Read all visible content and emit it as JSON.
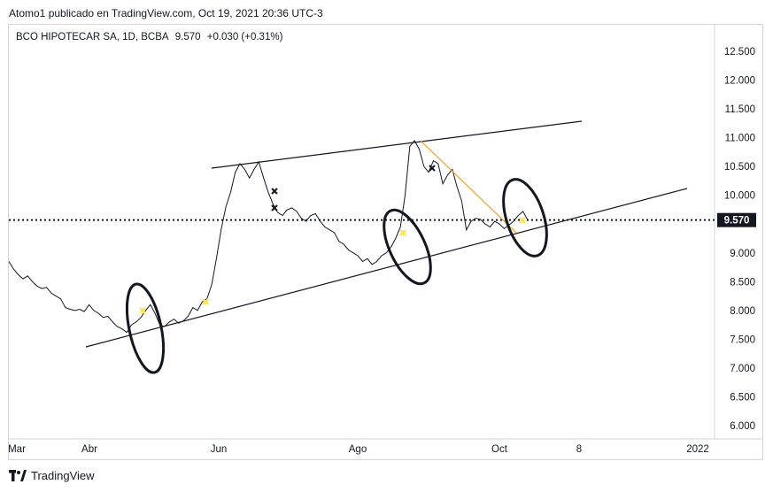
{
  "header": {
    "publisher": "Atomo1 publicado en TradingView.com, Oct 19, 2021 20:36 UTC-3"
  },
  "legend": {
    "symbol": "BCO HIPOTECAR SA, 1D, BCBA",
    "last": "9.570",
    "change": "+0.030 (+0.31%)"
  },
  "footer": {
    "brand": "TradingView"
  },
  "colors": {
    "price_line": "#131722",
    "trendline": "#131722",
    "orange_trendline": "#f7a21b",
    "marker_yellow": "#ffe44d",
    "price_label_bg": "#131722",
    "price_label_text": "#ffffff"
  },
  "chart_data": {
    "type": "line",
    "y_axis": {
      "ticks": [
        "12.500",
        "12.000",
        "11.500",
        "11.000",
        "10.500",
        "10.000",
        "9.000",
        "8.500",
        "8.000",
        "7.500",
        "7.000",
        "6.500",
        "6.000"
      ],
      "current_price_label": "9.570",
      "ylim": [
        5.9,
        12.7
      ]
    },
    "x_axis": {
      "ticks": [
        "Mar",
        "Abr",
        "Jun",
        "Ago",
        "Oct",
        "8",
        "2022"
      ]
    },
    "series": [
      {
        "values": [
          8.85,
          8.72,
          8.62,
          8.55,
          8.6,
          8.5,
          8.42,
          8.38,
          8.4,
          8.3,
          8.25,
          8.2,
          8.05,
          8.02,
          8.0,
          8.02,
          7.98,
          8.1,
          8.0,
          7.95,
          7.88,
          7.9,
          7.8,
          7.72,
          7.68,
          7.62,
          7.75,
          7.8,
          7.88,
          8.0,
          8.1,
          7.95,
          7.75,
          7.72,
          7.8,
          7.85,
          7.78,
          7.82,
          7.9,
          8.05,
          8.0,
          8.15,
          8.2,
          8.45,
          8.9,
          9.4,
          9.8,
          10.05,
          10.4,
          10.55,
          10.45,
          10.3,
          10.45,
          10.58,
          10.3,
          10.05,
          9.85,
          9.7,
          9.65,
          9.75,
          9.78,
          9.72,
          9.6,
          9.55,
          9.65,
          9.68,
          9.55,
          9.45,
          9.4,
          9.35,
          9.2,
          9.15,
          9.05,
          9.0,
          8.95,
          8.85,
          8.9,
          8.8,
          8.85,
          8.95,
          9.0,
          9.1,
          9.25,
          9.45,
          10.0,
          10.85,
          10.95,
          10.8,
          10.5,
          10.4,
          10.6,
          10.55,
          10.2,
          10.35,
          10.45,
          10.15,
          9.9,
          9.4,
          9.55,
          9.6,
          9.58,
          9.5,
          9.45,
          9.55,
          9.5,
          9.42,
          9.48,
          9.55,
          9.65,
          9.72,
          9.57
        ]
      }
    ],
    "annotations": {
      "trendlines": [
        {
          "style": "black",
          "from": [
            7.38,
            "start"
          ],
          "to": [
            10.12,
            "end"
          ]
        },
        {
          "style": "black",
          "from": [
            10.48,
            "start"
          ],
          "to": [
            11.28,
            "end"
          ]
        },
        {
          "style": "orange",
          "from": [
            10.95,
            "Ago"
          ],
          "to": [
            9.52,
            "Oct"
          ]
        }
      ],
      "current_price_dotted_line": 9.57
    }
  }
}
